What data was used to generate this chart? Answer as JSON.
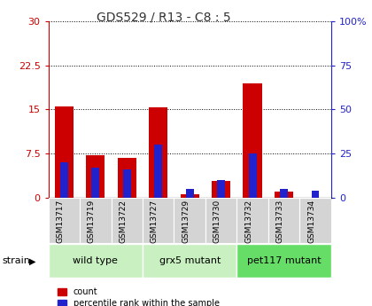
{
  "title": "GDS529 / R13 - C8 : 5",
  "samples": [
    "GSM13717",
    "GSM13719",
    "GSM13722",
    "GSM13727",
    "GSM13729",
    "GSM13730",
    "GSM13732",
    "GSM13733",
    "GSM13734"
  ],
  "count_values": [
    15.5,
    7.2,
    6.8,
    15.3,
    0.6,
    2.8,
    19.5,
    1.0,
    0.0
  ],
  "percentile_values": [
    20,
    17,
    16,
    30,
    5,
    10,
    25,
    5,
    4
  ],
  "groups": [
    {
      "label": "wild type",
      "start": 0,
      "end": 3,
      "color": "#c8f0c0"
    },
    {
      "label": "grx5 mutant",
      "start": 3,
      "end": 6,
      "color": "#c8f0c0"
    },
    {
      "label": "pet117 mutant",
      "start": 6,
      "end": 9,
      "color": "#66dd66"
    }
  ],
  "ylim_left": [
    0,
    30
  ],
  "ylim_right": [
    0,
    100
  ],
  "yticks_left": [
    0,
    7.5,
    15,
    22.5,
    30
  ],
  "ytick_labels_left": [
    "0",
    "7.5",
    "15",
    "22.5",
    "30"
  ],
  "yticks_right": [
    0,
    25,
    50,
    75,
    100
  ],
  "ytick_labels_right": [
    "0",
    "25",
    "50",
    "75",
    "100%"
  ],
  "bar_color_red": "#cc0000",
  "bar_color_blue": "#2222cc",
  "bar_width": 0.6,
  "blue_bar_width": 0.25,
  "bg_color_plot": "#ffffff",
  "grid_color": "#000000",
  "left_tick_color": "#cc0000",
  "right_tick_color": "#2222cc",
  "legend_count_label": "count",
  "legend_percentile_label": "percentile rank within the sample",
  "strain_label": "strain"
}
